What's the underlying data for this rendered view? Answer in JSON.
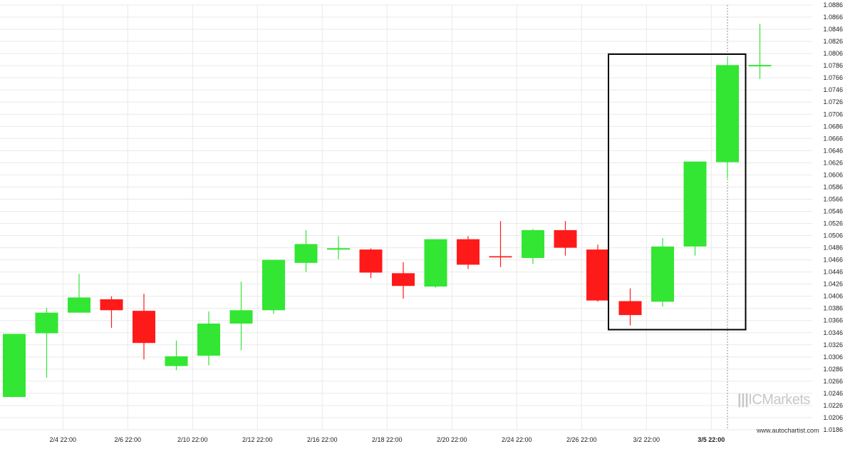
{
  "chart_data": {
    "type": "candlestick",
    "title": "",
    "xlabel": "",
    "ylabel": "",
    "ylim": [
      1.0186,
      1.0886
    ],
    "y_ticks": [
      "1.0886",
      "1.0866",
      "1.0846",
      "1.0826",
      "1.0806",
      "1.0786",
      "1.0766",
      "1.0746",
      "1.0726",
      "1.0706",
      "1.0686",
      "1.0666",
      "1.0646",
      "1.0626",
      "1.0606",
      "1.0586",
      "1.0566",
      "1.0546",
      "1.0526",
      "1.0506",
      "1.0486",
      "1.0466",
      "1.0446",
      "1.0426",
      "1.0406",
      "1.0386",
      "1.0366",
      "1.0346",
      "1.0326",
      "1.0306",
      "1.0286",
      "1.0266",
      "1.0246",
      "1.0226",
      "1.0206",
      "1.0186"
    ],
    "x_ticks": [
      {
        "label": "2/4 22:00",
        "index": 1.5,
        "bold": false
      },
      {
        "label": "2/6 22:00",
        "index": 3.5,
        "bold": false
      },
      {
        "label": "2/10 22:00",
        "index": 5.5,
        "bold": false
      },
      {
        "label": "2/12 22:00",
        "index": 7.5,
        "bold": false
      },
      {
        "label": "2/16 22:00",
        "index": 9.5,
        "bold": false
      },
      {
        "label": "2/18 22:00",
        "index": 11.5,
        "bold": false
      },
      {
        "label": "2/20 22:00",
        "index": 13.5,
        "bold": false
      },
      {
        "label": "2/24 22:00",
        "index": 15.5,
        "bold": false
      },
      {
        "label": "2/26 22:00",
        "index": 17.5,
        "bold": false
      },
      {
        "label": "3/2 22:00",
        "index": 19.5,
        "bold": false
      },
      {
        "label": "3/5 22:00",
        "index": 21.5,
        "bold": true
      }
    ],
    "candles": [
      {
        "o": 1.024,
        "h": 1.0344,
        "l": 1.024,
        "c": 1.0344
      },
      {
        "o": 1.0345,
        "h": 1.0387,
        "l": 1.0272,
        "c": 1.0379
      },
      {
        "o": 1.0379,
        "h": 1.0443,
        "l": 1.0379,
        "c": 1.0404
      },
      {
        "o": 1.0401,
        "h": 1.0406,
        "l": 1.0354,
        "c": 1.0383
      },
      {
        "o": 1.0382,
        "h": 1.041,
        "l": 1.0302,
        "c": 1.0329
      },
      {
        "o": 1.0291,
        "h": 1.0333,
        "l": 1.0284,
        "c": 1.0307
      },
      {
        "o": 1.0308,
        "h": 1.0381,
        "l": 1.0292,
        "c": 1.0361
      },
      {
        "o": 1.0361,
        "h": 1.043,
        "l": 1.0317,
        "c": 1.0383
      },
      {
        "o": 1.0383,
        "h": 1.0466,
        "l": 1.0377,
        "c": 1.0466
      },
      {
        "o": 1.0461,
        "h": 1.0515,
        "l": 1.0446,
        "c": 1.0492
      },
      {
        "o": 1.0484,
        "h": 1.0505,
        "l": 1.0467,
        "c": 1.0484
      },
      {
        "o": 1.0483,
        "h": 1.0485,
        "l": 1.0436,
        "c": 1.0445
      },
      {
        "o": 1.0444,
        "h": 1.0462,
        "l": 1.0402,
        "c": 1.0423
      },
      {
        "o": 1.0422,
        "h": 1.05,
        "l": 1.042,
        "c": 1.05
      },
      {
        "o": 1.05,
        "h": 1.0505,
        "l": 1.0451,
        "c": 1.0458
      },
      {
        "o": 1.0472,
        "h": 1.053,
        "l": 1.0454,
        "c": 1.047
      },
      {
        "o": 1.0469,
        "h": 1.0517,
        "l": 1.0459,
        "c": 1.0515
      },
      {
        "o": 1.0515,
        "h": 1.053,
        "l": 1.0473,
        "c": 1.0486
      },
      {
        "o": 1.0483,
        "h": 1.0491,
        "l": 1.0397,
        "c": 1.0399
      },
      {
        "o": 1.0398,
        "h": 1.0419,
        "l": 1.0358,
        "c": 1.0375
      },
      {
        "o": 1.0397,
        "h": 1.0502,
        "l": 1.0389,
        "c": 1.0488
      },
      {
        "o": 1.0488,
        "h": 1.0628,
        "l": 1.0473,
        "c": 1.0628
      },
      {
        "o": 1.0627,
        "h": 1.0799,
        "l": 1.06,
        "c": 1.0787
      },
      {
        "o": 1.0786,
        "h": 1.0855,
        "l": 1.0764,
        "c": 1.0786
      }
    ],
    "highlight_box": {
      "from_index": 19,
      "to_index": 22,
      "y_low": 1.0351,
      "y_high": 1.0805
    },
    "crosshair_index": 22,
    "grid": true,
    "colors": {
      "up": "#33e633",
      "down": "#ff1a1a",
      "grid": "#e9e9e9",
      "box": "#000000",
      "axis_text": "#222222"
    }
  },
  "watermark": {
    "mark": "|||",
    "brand": "ICMarkets"
  },
  "footer": {
    "url": "www.autochartist.com"
  }
}
